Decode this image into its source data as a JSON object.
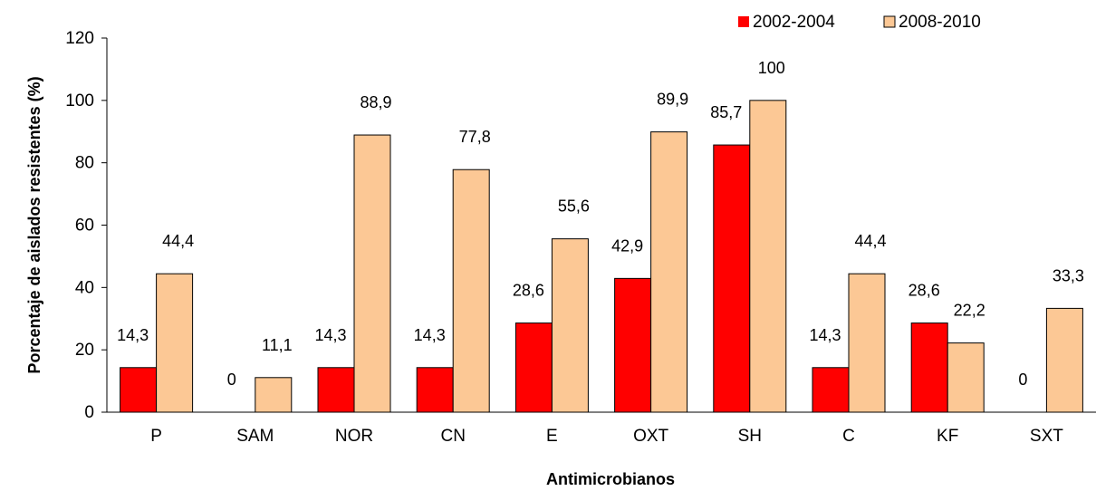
{
  "chart_data": {
    "type": "bar",
    "title": "",
    "xlabel": "Antimicrobianos",
    "ylabel": "Porcentaje de aislados resistentes (%)",
    "ylim": [
      0,
      120
    ],
    "yticks": [
      "0",
      "20",
      "40",
      "60",
      "80",
      "100",
      "120"
    ],
    "grid": false,
    "legend_position": "top-right",
    "categories": [
      "P",
      "SAM",
      "NOR",
      "CN",
      "E",
      "OXT",
      "SH",
      "C",
      "KF",
      "SXT"
    ],
    "series": [
      {
        "name": "2002-2004",
        "color": "#ff0000",
        "values": [
          14.3,
          0,
          14.3,
          14.3,
          28.6,
          42.9,
          85.7,
          14.3,
          28.6,
          0
        ],
        "labels": [
          "14,3",
          "0",
          "14,3",
          "14,3",
          "28,6",
          "42,9",
          "85,7",
          "14,3",
          "28,6",
          "0"
        ]
      },
      {
        "name": "2008-2010",
        "color": "#fcc895",
        "values": [
          44.4,
          11.1,
          88.9,
          77.8,
          55.6,
          89.9,
          100,
          44.4,
          22.2,
          33.3
        ],
        "labels": [
          "44,4",
          "11,1",
          "88,9",
          "77,8",
          "55,6",
          "89,9",
          "100",
          "44,4",
          "22,2",
          "33,3"
        ]
      }
    ]
  }
}
